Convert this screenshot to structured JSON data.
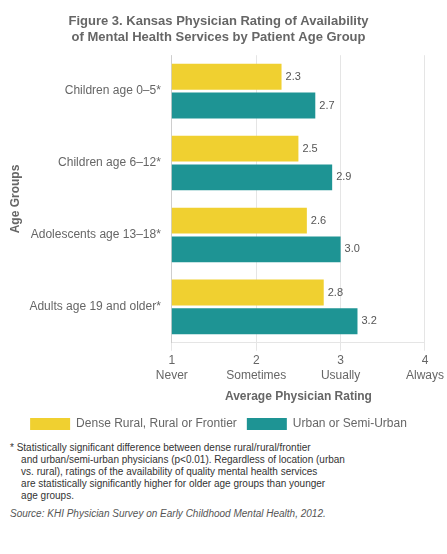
{
  "chart_data": {
    "type": "bar",
    "orientation": "horizontal",
    "title": "Figure 3. Kansas Physician Rating of Availability\nof Mental Health Services by Patient Age Group",
    "categories": [
      "Children age 0–5*",
      "Children age 6–12*",
      "Adolescents age 13–18*",
      "Adults age 19 and older*"
    ],
    "series": [
      {
        "name": "Dense Rural, Rural or Frontier",
        "color": "#F0D030",
        "values": [
          2.3,
          2.5,
          2.6,
          2.8
        ],
        "value_labels": [
          "2.3",
          "2.5",
          "2.6",
          "2.8"
        ]
      },
      {
        "name": "Urban or Semi-Urban",
        "color": "#1E9494",
        "values": [
          2.7,
          2.9,
          3.0,
          3.2
        ],
        "value_labels": [
          "2.7",
          "2.9",
          "3.0",
          "3.2"
        ]
      }
    ],
    "xlabel": "Average Physician Rating",
    "ylabel": "Age Groups",
    "xlim": [
      1,
      4
    ],
    "xticks": [
      {
        "value": 1,
        "label": "1\nNever"
      },
      {
        "value": 2,
        "label": "2\nSometimes"
      },
      {
        "value": 3,
        "label": "3\nUsually"
      },
      {
        "value": 4,
        "label": "4\nAlways"
      }
    ],
    "grid": true,
    "legend": "bottom",
    "data_labels": true,
    "annotations": [
      "* Statistically significant difference between dense rural/rural/frontier\n    and urban/semi-urban physicians (p<0.01). Regardless of location (urban\n    vs. rural), ratings of the availability of quality mental health services\n    are statistically significantly higher for older age groups than younger\n    age groups.",
      "Source: KHI Physician Survey on Early Childhood Mental Health, 2012."
    ]
  }
}
